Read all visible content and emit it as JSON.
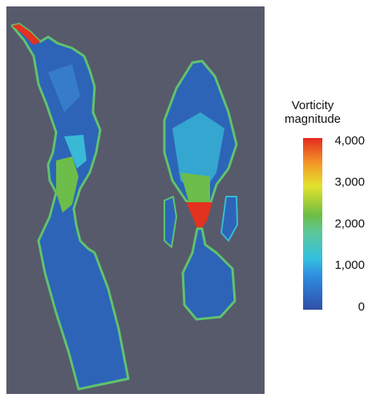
{
  "colorbar": {
    "title": "Vorticity magnitude",
    "lim": [
      0,
      4000
    ],
    "ticks": [
      {
        "value": 0,
        "label": "0"
      },
      {
        "value": 1000,
        "label": "1,000"
      },
      {
        "value": 2000,
        "label": "2,000"
      },
      {
        "value": 3000,
        "label": "3,000"
      },
      {
        "value": 4000,
        "label": "4,000"
      }
    ]
  }
}
